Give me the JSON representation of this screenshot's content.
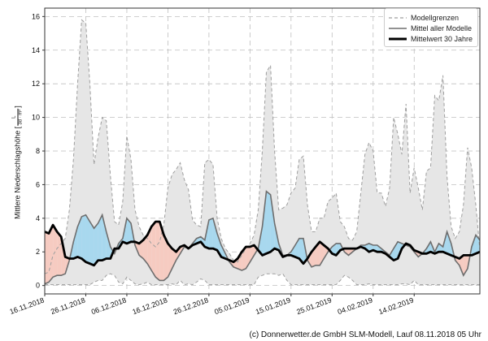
{
  "chart_data": {
    "type": "area",
    "title": "",
    "xlabel": "",
    "ylabel": "Mittlere Niederschlagshöhe",
    "ylabel_unit_num": "L",
    "ylabel_unit_den": "3d · m²",
    "ylim": [
      -0.5,
      16.5
    ],
    "xlim": [
      0,
      106
    ],
    "yticks": [
      0,
      2,
      4,
      6,
      8,
      10,
      12,
      14,
      16
    ],
    "grid": true,
    "legend_position": "top-right",
    "x_tick_positions": [
      0,
      10,
      20,
      30,
      40,
      50,
      60,
      70,
      80,
      90
    ],
    "x_tick_labels": [
      "16.11.2018",
      "26.11.2018",
      "06.12.2018",
      "16.12.2018",
      "26.12.2018",
      "05.01.2019",
      "15.01.2019",
      "25.01.2019",
      "04.02.2019",
      "14.02.2019"
    ],
    "series": [
      {
        "name": "Modellgrenzen",
        "upper": [
          0.7,
          0.8,
          1.8,
          2.2,
          2.5,
          2.8,
          4.5,
          7.5,
          12,
          15.8,
          15.6,
          12,
          7.2,
          8.8,
          10,
          9.8,
          6.5,
          3.8,
          3.6,
          5,
          8.9,
          7.5,
          4.5,
          3.5,
          3,
          2.8,
          2.5,
          2.3,
          2.6,
          3.6,
          5.8,
          6.6,
          6.9,
          7.3,
          6.3,
          5.7,
          3.9,
          3.6,
          3.5,
          7.3,
          7.5,
          7.2,
          4,
          2.8,
          2.2,
          1.9,
          1.5,
          1.4,
          1.8,
          2.2,
          2.5,
          3,
          4.5,
          8,
          12.7,
          13.1,
          8,
          4.5,
          4.6,
          4.8,
          5.5,
          5.8,
          7.5,
          7.7,
          4.8,
          3.2,
          3.2,
          4,
          4,
          5,
          5.2,
          5.5,
          3.8,
          3.5,
          2.8,
          2.7,
          3.2,
          5.5,
          7.8,
          8.5,
          8,
          5.5,
          5.5,
          4.7,
          5.8,
          10,
          9,
          7.8,
          10.8,
          5.5,
          7,
          5.8,
          4.5,
          6.8,
          7,
          11.3,
          11,
          12.5,
          6.5,
          3.5,
          2.8,
          3.2,
          4.8,
          8.2,
          7,
          4.8,
          2.1,
          1.5
        ],
        "lower": [
          0.05,
          0.05,
          0.05,
          0.05,
          0.05,
          0.05,
          0.05,
          0.05,
          0.05,
          0.05,
          0.05,
          0.05,
          0.2,
          0.3,
          0.3,
          0.6,
          0.7,
          0.6,
          0.2,
          0.1,
          0.5,
          0.3,
          0.1,
          0.05,
          0.1,
          0.2,
          0.05,
          0.05,
          0.05,
          0.05,
          0.05,
          0.1,
          0.05,
          0.3,
          0.05,
          0.1,
          0.05,
          0.2,
          0.4,
          0.3,
          0.05,
          0.05,
          0.05,
          0.05,
          0.05,
          0.05,
          0.05,
          0.05,
          0.05,
          0.05,
          0.05,
          0.05,
          0.5,
          0.6,
          0.7,
          0.7,
          0.7,
          0.6,
          0.7,
          0.3,
          0.05,
          0.05,
          0.05,
          0.05,
          0.05,
          0.05,
          0.05,
          0.05,
          0.05,
          0.05,
          0.05,
          0.05,
          0.3,
          0.6,
          0.5,
          0.3,
          0.05,
          0.05,
          0.05,
          0.1,
          0.05,
          0.05,
          0.05,
          0.05,
          0.05,
          0.05,
          0.05,
          0.1,
          0.1,
          0.05,
          0.3,
          0.05,
          0.05,
          0.05,
          0.05,
          0.05,
          0.05,
          0.05,
          0.05,
          0.05,
          0.05,
          0.05,
          0.05,
          0.05,
          0.05,
          0.05,
          0.05,
          0.05
        ]
      },
      {
        "name": "Mittel aller Modelle",
        "values": [
          0.1,
          0.2,
          0.5,
          0.6,
          0.6,
          0.7,
          1.5,
          2.6,
          3.5,
          4.1,
          4.2,
          3.8,
          3.4,
          3.7,
          4.2,
          3.2,
          2.3,
          1.9,
          2.5,
          2.8,
          4,
          3.7,
          2.4,
          1.8,
          1.6,
          1.3,
          0.9,
          0.5,
          0.3,
          0.3,
          0.5,
          1,
          1.5,
          1.9,
          2.3,
          2.2,
          2.5,
          2.8,
          2.9,
          2.7,
          3.9,
          4,
          3.1,
          2.4,
          1.9,
          1.4,
          1.1,
          1,
          0.9,
          1,
          1.4,
          1.8,
          2.2,
          3.5,
          5.6,
          5.4,
          3.7,
          2.5,
          1.8,
          1.8,
          2,
          2.4,
          2.8,
          2.8,
          1.5,
          1.1,
          1.2,
          1.2,
          1.6,
          2,
          2.3,
          2.5,
          2.5,
          2,
          1.8,
          2,
          2.2,
          2.4,
          2.4,
          2.5,
          2.4,
          2.4,
          2.2,
          2,
          1.8,
          2.2,
          2.6,
          2.5,
          2.4,
          2.3,
          2,
          1.7,
          1.9,
          2.2,
          2.6,
          2,
          2.5,
          2.3,
          3.2,
          2.5,
          1.5,
          1.2,
          0.6,
          1,
          2.3,
          3,
          2.7,
          1.4
        ]
      },
      {
        "name": "Mittelwert 30 Jahre",
        "values": [
          3.2,
          3.1,
          3.6,
          3.2,
          2.9,
          1.7,
          1.6,
          1.6,
          1.7,
          1.6,
          1.4,
          1.3,
          1.2,
          1.5,
          1.5,
          1.6,
          1.6,
          2.2,
          2.2,
          2.6,
          2.5,
          2.6,
          2.6,
          2.5,
          2.7,
          3,
          3.5,
          3.8,
          3.8,
          3,
          2.5,
          2.2,
          2,
          2.3,
          2.4,
          2.2,
          2.4,
          2.5,
          2.6,
          2.3,
          2.2,
          2.2,
          2.1,
          1.7,
          1.6,
          1.5,
          1.4,
          1.6,
          2,
          2.3,
          2.3,
          2.4,
          2.1,
          1.8,
          1.9,
          2,
          2.2,
          2.1,
          1.7,
          1.8,
          1.8,
          1.7,
          1.6,
          1.3,
          1.6,
          2,
          2.3,
          2.6,
          2.4,
          2.2,
          1.9,
          1.8,
          2.1,
          2.2,
          2.2,
          2.2,
          2.2,
          2.3,
          2.2,
          2,
          2.1,
          2,
          2,
          1.9,
          1.7,
          1.5,
          1.6,
          2.2,
          2.5,
          2.4,
          2.1,
          2,
          1.9,
          1.9,
          2,
          1.9,
          2,
          2,
          1.9,
          1.8,
          1.7,
          1.6,
          1.8,
          1.8,
          1.8,
          1.9,
          2,
          1.7
        ]
      }
    ]
  },
  "colors": {
    "band_fill": "#e6e6e6",
    "band_line": "#9e9e9e",
    "mean_line": "#6e6e6e",
    "climate_line": "#000000",
    "above_fill": "#a8d8ee",
    "below_fill": "#f6cbc1",
    "grid": "#bfbfbf"
  },
  "legend": {
    "items": [
      "Modellgrenzen",
      "Mittel aller Modelle",
      "Mittelwert 30 Jahre"
    ]
  },
  "footer": {
    "credit": "(c) Donnerwetter.de GmbH SLM-Modell, Lauf 08.11.2018 05 Uhr"
  }
}
